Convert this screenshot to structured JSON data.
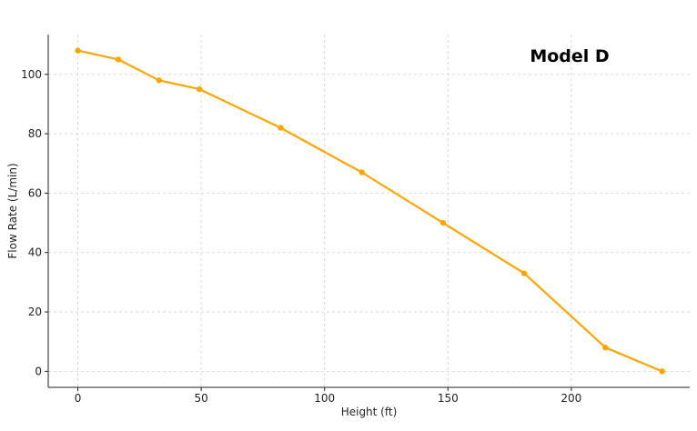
{
  "chart_data": {
    "type": "line",
    "title": "Model D",
    "xlabel": "Height (ft)",
    "ylabel": "Flow Rate (L/min)",
    "xlim": [
      -12,
      248
    ],
    "ylim": [
      -5.4,
      113.4
    ],
    "xticks": [
      0,
      50,
      100,
      150,
      200
    ],
    "yticks": [
      0,
      20,
      40,
      60,
      80,
      100
    ],
    "grid": true,
    "series": [
      {
        "color": "#FFA500",
        "x": [
          0,
          16.4,
          32.9,
          49.3,
          82.2,
          115.1,
          148,
          180.9,
          213.8,
          236.8
        ],
        "y": [
          108,
          105,
          98,
          95,
          82,
          67,
          50,
          33,
          8,
          0
        ]
      }
    ]
  }
}
